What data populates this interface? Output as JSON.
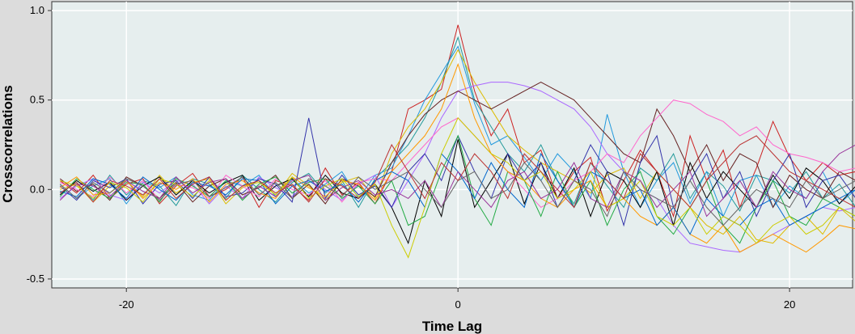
{
  "chart_data": {
    "type": "line",
    "title": "",
    "xlabel": "Time Lag",
    "ylabel": "Crosscorrelations",
    "xlim": [
      -24.5,
      23.8
    ],
    "ylim": [
      -0.55,
      1.05
    ],
    "x_ticks": [
      -20,
      0,
      20
    ],
    "x_tick_labels": [
      "-20",
      "0",
      "20"
    ],
    "y_ticks": [
      -0.5,
      0.0,
      0.5,
      1.0
    ],
    "y_tick_labels": [
      "-0.5",
      "0.0",
      "0.5",
      "1.0"
    ],
    "x": [
      -24,
      -23,
      -22,
      -21,
      -20,
      -19,
      -18,
      -17,
      -16,
      -15,
      -14,
      -13,
      -12,
      -11,
      -10,
      -9,
      -8,
      -7,
      -6,
      -5,
      -4,
      -3,
      -2,
      -1,
      0,
      1,
      2,
      3,
      4,
      5,
      6,
      7,
      8,
      9,
      10,
      11,
      12,
      13,
      14,
      15,
      16,
      17,
      18,
      19,
      20,
      21,
      22,
      23,
      24
    ],
    "grid": true,
    "legend": "none",
    "background": "#e6eeee",
    "series": [
      {
        "color": "#cc2222",
        "values": [
          0.05,
          -0.02,
          0.08,
          -0.05,
          0.03,
          0.06,
          -0.08,
          0.02,
          0.09,
          -0.04,
          0.0,
          0.07,
          -0.1,
          0.05,
          0.02,
          -0.06,
          0.12,
          -0.03,
          0.04,
          -0.08,
          0.1,
          0.45,
          0.5,
          0.56,
          0.92,
          0.55,
          0.3,
          0.45,
          0.15,
          0.22,
          -0.05,
          0.1,
          0.18,
          -0.12,
          0.05,
          0.22,
          0.1,
          -0.15,
          0.3,
          0.05,
          0.22,
          -0.1,
          0.12,
          0.38,
          0.18,
          0.05,
          0.15,
          0.08,
          0.1
        ]
      },
      {
        "color": "#229999",
        "values": [
          -0.02,
          0.04,
          -0.06,
          0.08,
          -0.03,
          0.05,
          0.02,
          -0.09,
          0.06,
          0.03,
          -0.05,
          0.08,
          0.0,
          -0.07,
          0.04,
          0.09,
          -0.02,
          0.05,
          -0.1,
          0.06,
          0.15,
          0.25,
          0.4,
          0.6,
          0.85,
          0.5,
          0.35,
          0.2,
          0.1,
          0.25,
          0.05,
          -0.08,
          0.15,
          0.02,
          -0.1,
          0.12,
          0.05,
          0.2,
          -0.05,
          0.1,
          0.02,
          -0.12,
          0.08,
          0.05,
          -0.02,
          0.1,
          -0.05,
          0.03,
          -0.1
        ]
      },
      {
        "color": "#2299dd",
        "values": [
          0.03,
          -0.05,
          0.02,
          0.06,
          -0.08,
          0.04,
          0.01,
          0.07,
          -0.03,
          -0.06,
          0.05,
          0.02,
          0.08,
          -0.04,
          0.06,
          -0.02,
          0.03,
          0.1,
          -0.05,
          0.08,
          0.12,
          0.3,
          0.5,
          0.65,
          0.8,
          0.48,
          0.25,
          0.3,
          0.18,
          0.05,
          0.2,
          0.1,
          -0.05,
          0.42,
          0.1,
          -0.1,
          0.05,
          0.15,
          -0.08,
          0.1,
          -0.15,
          0.05,
          0.08,
          -0.1,
          0.02,
          -0.05,
          0.1,
          -0.08,
          0.0
        ]
      },
      {
        "color": "#ddbb00",
        "values": [
          0.0,
          0.03,
          -0.07,
          0.02,
          0.05,
          -0.04,
          0.08,
          -0.02,
          0.04,
          0.06,
          -0.08,
          0.01,
          0.05,
          -0.03,
          0.09,
          0.02,
          -0.06,
          0.04,
          0.07,
          -0.05,
          0.2,
          0.35,
          0.45,
          0.6,
          0.78,
          0.6,
          0.45,
          0.3,
          0.22,
          0.15,
          0.1,
          0.05,
          -0.02,
          0.08,
          0.12,
          -0.05,
          0.1,
          0.0,
          -0.1,
          -0.2,
          -0.25,
          -0.15,
          -0.28,
          -0.3,
          -0.2,
          -0.15,
          -0.25,
          -0.1,
          -0.18
        ]
      },
      {
        "color": "#aa66ff",
        "values": [
          -0.05,
          0.02,
          0.06,
          -0.03,
          -0.06,
          0.04,
          -0.02,
          0.05,
          0.03,
          -0.08,
          0.02,
          -0.05,
          0.07,
          0.01,
          -0.04,
          0.05,
          0.0,
          -0.06,
          0.03,
          0.08,
          -0.1,
          0.05,
          0.2,
          0.4,
          0.55,
          0.58,
          0.6,
          0.6,
          0.58,
          0.55,
          0.5,
          0.45,
          0.35,
          0.2,
          0.1,
          0.0,
          -0.05,
          -0.2,
          -0.3,
          -0.32,
          -0.34,
          -0.35,
          -0.3,
          -0.25,
          -0.2,
          -0.15,
          -0.1,
          -0.12,
          -0.1
        ]
      },
      {
        "color": "#662222",
        "values": [
          0.06,
          -0.01,
          0.03,
          -0.06,
          0.07,
          0.02,
          -0.05,
          0.04,
          -0.07,
          0.02,
          0.06,
          -0.03,
          0.01,
          0.08,
          -0.05,
          0.03,
          -0.08,
          0.06,
          0.02,
          -0.04,
          0.15,
          0.3,
          0.42,
          0.5,
          0.55,
          0.5,
          0.45,
          0.5,
          0.55,
          0.6,
          0.55,
          0.5,
          0.4,
          0.3,
          0.2,
          0.15,
          0.45,
          0.3,
          0.1,
          0.25,
          0.05,
          0.2,
          0.15,
          -0.1,
          0.08,
          0.0,
          -0.05,
          0.1,
          0.05
        ]
      },
      {
        "color": "#000000",
        "values": [
          -0.03,
          0.05,
          -0.01,
          0.04,
          -0.06,
          0.02,
          0.07,
          -0.03,
          0.05,
          -0.02,
          0.04,
          0.08,
          -0.06,
          0.02,
          0.06,
          -0.04,
          0.08,
          -0.02,
          -0.05,
          0.03,
          -0.1,
          -0.3,
          0.05,
          -0.15,
          0.28,
          -0.1,
          0.05,
          0.2,
          -0.08,
          0.15,
          -0.05,
          0.12,
          -0.15,
          0.1,
          0.05,
          -0.1,
          0.1,
          -0.2,
          0.15,
          -0.05,
          0.1,
          0.0,
          -0.1,
          0.08,
          -0.05,
          0.12,
          0.05,
          -0.08,
          0.02
        ]
      },
      {
        "color": "#3333aa",
        "values": [
          0.02,
          -0.06,
          0.05,
          0.01,
          0.06,
          -0.08,
          0.03,
          0.05,
          -0.05,
          0.07,
          -0.04,
          -0.02,
          0.06,
          0.03,
          -0.07,
          0.4,
          -0.05,
          0.08,
          -0.03,
          0.02,
          -0.1,
          0.1,
          0.2,
          0.05,
          0.3,
          0.1,
          -0.05,
          0.2,
          0.05,
          0.15,
          -0.1,
          0.05,
          0.25,
          0.1,
          -0.2,
          0.15,
          0.3,
          -0.1,
          0.05,
          0.2,
          -0.05,
          0.1,
          -0.15,
          0.05,
          0.2,
          -0.1,
          0.05,
          0.08,
          -0.05
        ]
      },
      {
        "color": "#ff66cc",
        "values": [
          0.04,
          0.0,
          -0.04,
          0.07,
          -0.02,
          0.05,
          -0.06,
          0.03,
          0.01,
          -0.05,
          0.08,
          0.02,
          -0.04,
          0.06,
          0.0,
          -0.03,
          0.05,
          -0.07,
          0.04,
          0.06,
          0.05,
          0.15,
          0.25,
          0.35,
          0.4,
          0.3,
          0.2,
          0.1,
          0.0,
          -0.1,
          -0.05,
          0.05,
          0.1,
          0.2,
          0.15,
          0.3,
          0.4,
          0.5,
          0.48,
          0.42,
          0.38,
          0.3,
          0.35,
          0.25,
          0.2,
          0.18,
          0.15,
          0.1,
          0.12
        ]
      },
      {
        "color": "#22aa44",
        "values": [
          -0.04,
          0.06,
          0.0,
          -0.05,
          0.04,
          0.03,
          -0.07,
          0.06,
          0.02,
          -0.04,
          0.05,
          -0.06,
          0.03,
          0.07,
          -0.02,
          0.04,
          0.06,
          -0.05,
          0.02,
          -0.08,
          0.05,
          -0.2,
          -0.15,
          0.1,
          0.3,
          -0.05,
          -0.2,
          0.1,
          0.05,
          -0.15,
          0.1,
          -0.1,
          0.05,
          -0.2,
          0.0,
          0.1,
          -0.15,
          -0.25,
          -0.1,
          0.05,
          -0.2,
          -0.3,
          -0.1,
          0.05,
          -0.15,
          -0.2,
          -0.05,
          -0.1,
          -0.15
        ]
      },
      {
        "color": "#ff9900",
        "values": [
          0.01,
          0.07,
          -0.03,
          -0.02,
          0.05,
          -0.05,
          0.04,
          0.0,
          0.06,
          -0.07,
          0.03,
          0.05,
          -0.02,
          -0.05,
          0.07,
          0.01,
          -0.04,
          0.05,
          0.03,
          -0.06,
          0.1,
          0.2,
          0.3,
          0.45,
          0.7,
          0.4,
          0.2,
          0.1,
          0.05,
          -0.05,
          -0.1,
          0.0,
          0.05,
          -0.1,
          -0.05,
          -0.15,
          -0.2,
          -0.1,
          -0.25,
          -0.3,
          -0.2,
          -0.35,
          -0.3,
          -0.25,
          -0.3,
          -0.35,
          -0.28,
          -0.2,
          -0.22
        ]
      },
      {
        "color": "#0066cc",
        "values": [
          -0.01,
          -0.04,
          0.06,
          0.03,
          -0.05,
          0.07,
          0.0,
          -0.06,
          0.04,
          0.02,
          -0.03,
          0.06,
          0.05,
          -0.08,
          0.02,
          0.05,
          -0.01,
          0.03,
          -0.07,
          0.05,
          0.1,
          0.05,
          -0.1,
          0.2,
          0.1,
          -0.05,
          0.15,
          0.0,
          -0.1,
          0.2,
          0.05,
          -0.1,
          0.1,
          0.05,
          -0.05,
          0.0,
          -0.2,
          -0.1,
          -0.25,
          -0.05,
          -0.15,
          -0.2,
          -0.1,
          -0.05,
          -0.2,
          -0.15,
          -0.1,
          -0.05,
          0.0
        ]
      },
      {
        "color": "#cccc00",
        "values": [
          0.05,
          0.02,
          -0.05,
          0.04,
          0.01,
          -0.07,
          0.06,
          0.03,
          -0.04,
          0.05,
          -0.06,
          0.02,
          0.04,
          -0.03,
          0.07,
          -0.05,
          0.02,
          0.06,
          -0.04,
          0.03,
          -0.2,
          -0.38,
          -0.1,
          0.2,
          0.4,
          0.3,
          0.2,
          0.15,
          0.05,
          0.1,
          -0.05,
          0.0,
          0.1,
          -0.1,
          -0.05,
          0.05,
          -0.15,
          -0.2,
          -0.1,
          -0.25,
          -0.15,
          -0.2,
          -0.3,
          -0.2,
          -0.15,
          -0.25,
          -0.2,
          -0.1,
          -0.15
        ]
      },
      {
        "color": "#993399",
        "values": [
          -0.06,
          0.03,
          0.02,
          -0.04,
          0.05,
          -0.01,
          -0.05,
          0.07,
          -0.02,
          0.04,
          0.06,
          -0.05,
          0.02,
          -0.04,
          0.05,
          0.08,
          -0.06,
          0.01,
          0.05,
          -0.03,
          0.0,
          -0.05,
          0.05,
          -0.1,
          0.1,
          0.0,
          -0.1,
          0.05,
          0.1,
          -0.05,
          0.0,
          0.15,
          -0.05,
          -0.1,
          0.1,
          0.05,
          -0.1,
          0.0,
          0.1,
          -0.15,
          -0.05,
          0.05,
          -0.1,
          0.1,
          0.0,
          -0.05,
          0.1,
          0.2,
          0.25
        ]
      },
      {
        "color": "#666666",
        "values": [
          0.03,
          -0.05,
          0.04,
          -0.02,
          0.06,
          0.02,
          -0.06,
          0.03,
          0.05,
          -0.04,
          0.01,
          0.07,
          -0.03,
          0.04,
          -0.05,
          0.06,
          0.02,
          -0.04,
          0.07,
          0.0,
          0.05,
          0.1,
          0.0,
          -0.1,
          0.05,
          0.1,
          -0.05,
          0.0,
          0.15,
          0.05,
          -0.1,
          0.05,
          0.0,
          -0.15,
          0.1,
          0.0,
          -0.05,
          -0.1,
          0.05,
          -0.1,
          -0.2,
          -0.1,
          0.0,
          -0.05,
          -0.1,
          0.05,
          -0.05,
          0.0,
          0.05
        ]
      },
      {
        "color": "#bb3333",
        "values": [
          -0.02,
          0.04,
          -0.07,
          0.05,
          0.02,
          -0.03,
          0.06,
          -0.05,
          0.03,
          0.07,
          -0.06,
          0.02,
          0.05,
          -0.02,
          0.03,
          -0.07,
          0.06,
          0.02,
          -0.05,
          0.04,
          0.25,
          0.1,
          -0.05,
          0.15,
          0.05,
          0.2,
          0.1,
          -0.05,
          0.2,
          0.1,
          0.0,
          -0.1,
          0.15,
          0.05,
          -0.05,
          0.2,
          0.1,
          0.0,
          -0.1,
          0.05,
          0.15,
          0.25,
          0.3,
          0.2,
          0.1,
          0.05,
          0.0,
          -0.05,
          -0.1
        ]
      }
    ]
  }
}
